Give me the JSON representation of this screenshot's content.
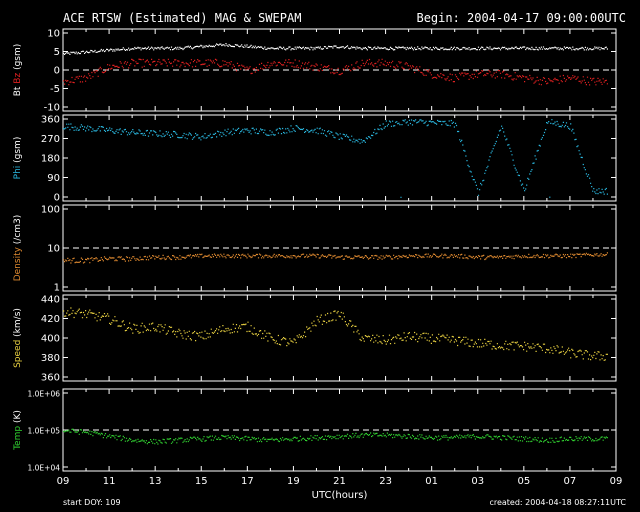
{
  "title": "ACE RTSW (Estimated) MAG & SWEPAM",
  "begin": "Begin: 2004-04-17 09:00:00UTC",
  "footer": {
    "start_doy": "start DOY: 109",
    "created": "created: 2004-04-18 08:27:11UTC"
  },
  "colors": {
    "background": "#000000",
    "foreground": "#ffffff",
    "bz": "#e02020",
    "bt": "#ffffff",
    "phi": "#2ab8e0",
    "density": "#e08a30",
    "speed": "#e8d040",
    "temp": "#30d030"
  },
  "chart_data": [
    {
      "type": "scatter",
      "ylabel_parts": [
        "Bt",
        "Bz",
        "(gsm)"
      ],
      "ylim": [
        -10,
        10
      ],
      "yticks": [
        "10",
        "5",
        "0",
        "-5",
        "-10"
      ],
      "reference_line": 0,
      "x": [
        0,
        1,
        2,
        3,
        4,
        5,
        6,
        7,
        8,
        9,
        10,
        11,
        12,
        13,
        14,
        15,
        16,
        17,
        18,
        19,
        20,
        21,
        22,
        23
      ],
      "series": [
        {
          "name": "Bt",
          "values": [
            4.5,
            5,
            5.5,
            6,
            6,
            6,
            6.5,
            7,
            6.5,
            6,
            6,
            6,
            6.5,
            6,
            6,
            6,
            6,
            6,
            6,
            6,
            6,
            6,
            6,
            6
          ]
        },
        {
          "name": "Bz",
          "values": [
            -3,
            -2,
            1,
            2,
            2,
            2,
            2,
            2,
            0,
            2,
            2,
            1,
            0,
            2,
            2,
            1,
            -1,
            -2,
            -1,
            -1,
            -2,
            -3,
            -2,
            -3
          ]
        }
      ]
    },
    {
      "type": "scatter",
      "ylabel_parts": [
        "Phi",
        "(gsm)"
      ],
      "ylim": [
        0,
        360
      ],
      "yticks": [
        "360",
        "270",
        "180",
        "90",
        "0"
      ],
      "x": [
        0,
        1,
        2,
        3,
        4,
        5,
        6,
        7,
        8,
        9,
        10,
        11,
        12,
        13,
        14,
        15,
        16,
        17,
        18,
        19,
        20,
        21,
        22,
        23
      ],
      "values": [
        330,
        320,
        310,
        300,
        295,
        290,
        280,
        300,
        310,
        300,
        320,
        310,
        280,
        260,
        340,
        350,
        345,
        340,
        20,
        330,
        30,
        350,
        330,
        30
      ]
    },
    {
      "type": "scatter",
      "ylabel_parts": [
        "Density",
        "(/cm3)"
      ],
      "ylim": [
        0,
        100
      ],
      "scale": "log",
      "yticks": [
        "100",
        "10",
        "1"
      ],
      "reference_line": 10,
      "x": [
        0,
        1,
        2,
        3,
        4,
        5,
        6,
        7,
        8,
        9,
        10,
        11,
        12,
        13,
        14,
        15,
        16,
        17,
        18,
        19,
        20,
        21,
        22,
        23
      ],
      "values": [
        5,
        5,
        5.5,
        5.5,
        6,
        6,
        6.5,
        6.5,
        6.5,
        6.5,
        6.5,
        6.5,
        6,
        6,
        6,
        6.5,
        6.5,
        6.5,
        6,
        6,
        6.5,
        6.5,
        6.5,
        7
      ]
    },
    {
      "type": "scatter",
      "ylabel_parts": [
        "Speed",
        "(km/s)"
      ],
      "ylim": [
        360,
        440
      ],
      "yticks": [
        "440",
        "420",
        "400",
        "380",
        "360"
      ],
      "x": [
        0,
        1,
        2,
        3,
        4,
        5,
        6,
        7,
        8,
        9,
        10,
        11,
        12,
        13,
        14,
        15,
        16,
        17,
        18,
        19,
        20,
        21,
        22,
        23
      ],
      "values": [
        428,
        425,
        420,
        410,
        412,
        405,
        402,
        410,
        412,
        400,
        395,
        418,
        425,
        400,
        398,
        402,
        400,
        398,
        395,
        393,
        392,
        390,
        385,
        382
      ]
    },
    {
      "type": "scatter",
      "ylabel_parts": [
        "Temp",
        "(K)"
      ],
      "ylim": [
        10000,
        1000000
      ],
      "scale": "log",
      "yticks": [
        "1.0E+06",
        "1.0E+05",
        "1.0E+04"
      ],
      "reference_line": 100000,
      "x": [
        0,
        1,
        2,
        3,
        4,
        5,
        6,
        7,
        8,
        9,
        10,
        11,
        12,
        13,
        14,
        15,
        16,
        17,
        18,
        19,
        20,
        21,
        22,
        23
      ],
      "values": [
        100000,
        90000,
        70000,
        55000,
        50000,
        55000,
        60000,
        65000,
        60000,
        55000,
        60000,
        65000,
        70000,
        75000,
        75000,
        70000,
        65000,
        65000,
        70000,
        65000,
        60000,
        55000,
        60000,
        60000
      ]
    },
    {
      "type": "axis",
      "xlabel": "UTC(hours)",
      "xticks": [
        "09",
        "11",
        "13",
        "15",
        "17",
        "19",
        "21",
        "23",
        "01",
        "03",
        "05",
        "07",
        "09"
      ]
    }
  ]
}
